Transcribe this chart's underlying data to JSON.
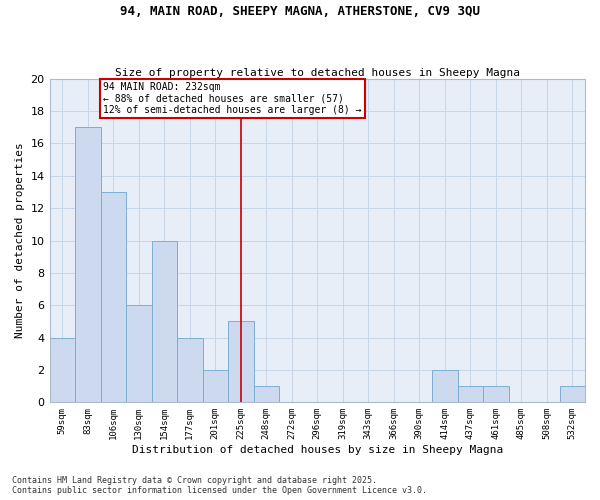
{
  "title1": "94, MAIN ROAD, SHEEPY MAGNA, ATHERSTONE, CV9 3QU",
  "title2": "Size of property relative to detached houses in Sheepy Magna",
  "xlabel": "Distribution of detached houses by size in Sheepy Magna",
  "ylabel": "Number of detached properties",
  "bar_labels": [
    "59sqm",
    "83sqm",
    "106sqm",
    "130sqm",
    "154sqm",
    "177sqm",
    "201sqm",
    "225sqm",
    "248sqm",
    "272sqm",
    "296sqm",
    "319sqm",
    "343sqm",
    "366sqm",
    "390sqm",
    "414sqm",
    "437sqm",
    "461sqm",
    "485sqm",
    "508sqm",
    "532sqm"
  ],
  "bar_values": [
    4,
    17,
    13,
    6,
    10,
    4,
    2,
    5,
    1,
    0,
    0,
    0,
    0,
    0,
    0,
    2,
    1,
    1,
    0,
    0,
    1
  ],
  "bar_color": "#ccd9ee",
  "bar_edgecolor": "#7bafd4",
  "vline_x_idx": 7,
  "vline_color": "#cc0000",
  "annotation_text": "94 MAIN ROAD: 232sqm\n← 88% of detached houses are smaller (57)\n12% of semi-detached houses are larger (8) →",
  "annotation_box_color": "#cc0000",
  "grid_color": "#c5d5e8",
  "bg_color": "#e8eef8",
  "footer": "Contains HM Land Registry data © Crown copyright and database right 2025.\nContains public sector information licensed under the Open Government Licence v3.0.",
  "ylim": [
    0,
    20
  ],
  "yticks": [
    0,
    2,
    4,
    6,
    8,
    10,
    12,
    14,
    16,
    18,
    20
  ]
}
